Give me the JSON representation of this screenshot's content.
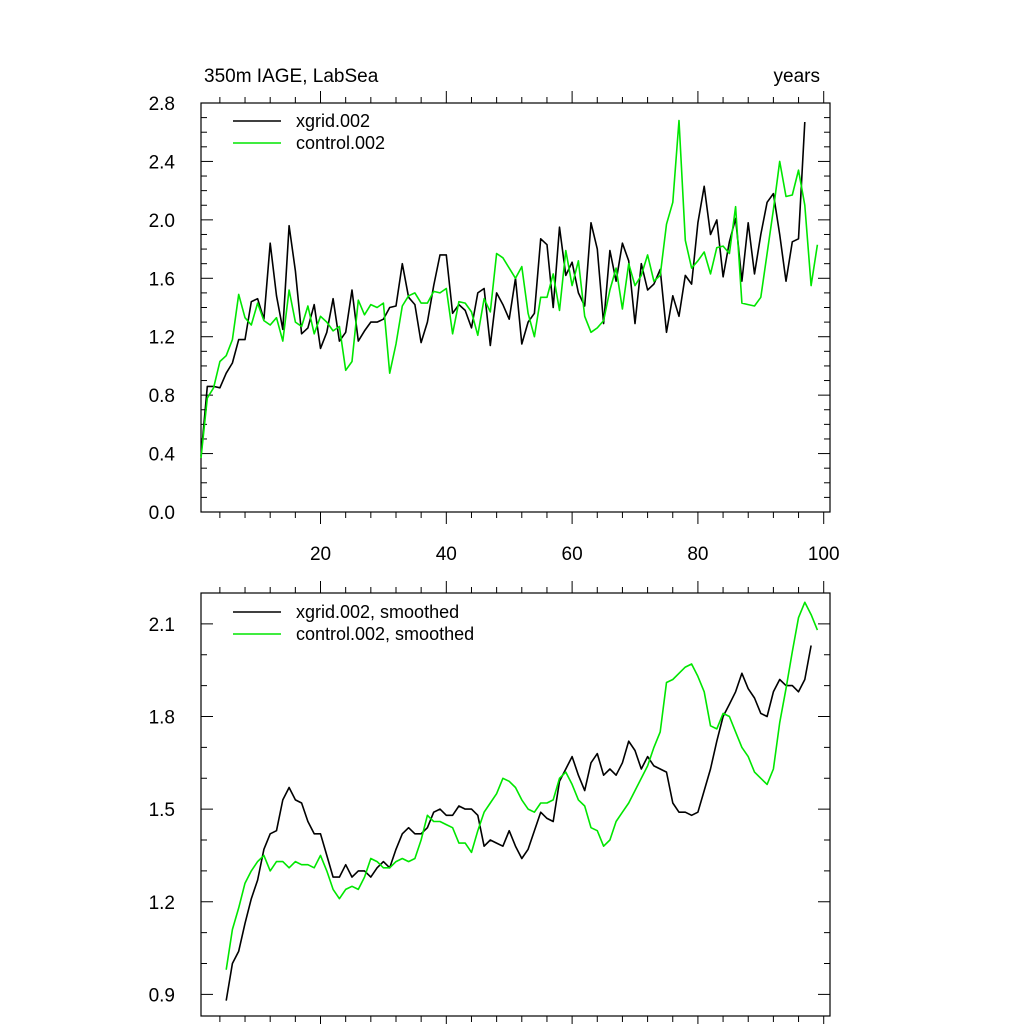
{
  "colors": {
    "xgrid": "#000000",
    "control": "#00e600",
    "axis": "#000000"
  },
  "chart_data": [
    {
      "type": "line",
      "title_left": "350m IAGE, LabSea",
      "title_right": "years",
      "xlim": [
        1,
        101
      ],
      "ylim": [
        0,
        2.8
      ],
      "xticks": [
        20,
        40,
        60,
        80,
        100
      ],
      "xtick_labels": [
        "20",
        "40",
        "60",
        "80",
        "100"
      ],
      "yticks": [
        0.0,
        0.4,
        0.8,
        1.2,
        1.6,
        2.0,
        2.4,
        2.8
      ],
      "ytick_labels": [
        "0.0",
        "0.4",
        "0.8",
        "1.2",
        "1.6",
        "2.0",
        "2.4",
        "2.8"
      ],
      "legend_position": "top-left",
      "series": [
        {
          "name": "xgrid.002",
          "color": "#000000",
          "x_start": 1,
          "values": [
            0.38,
            0.86,
            0.86,
            0.85,
            0.95,
            1.02,
            1.18,
            1.18,
            1.44,
            1.46,
            1.32,
            1.84,
            1.48,
            1.25,
            1.96,
            1.65,
            1.22,
            1.26,
            1.42,
            1.12,
            1.23,
            1.46,
            1.17,
            1.23,
            1.52,
            1.17,
            1.24,
            1.3,
            1.3,
            1.32,
            1.4,
            1.41,
            1.7,
            1.47,
            1.42,
            1.16,
            1.3,
            1.55,
            1.76,
            1.76,
            1.36,
            1.42,
            1.38,
            1.26,
            1.5,
            1.53,
            1.14,
            1.5,
            1.42,
            1.32,
            1.6,
            1.15,
            1.3,
            1.36,
            1.87,
            1.83,
            1.4,
            1.95,
            1.62,
            1.71,
            1.5,
            1.41,
            1.98,
            1.8,
            1.29,
            1.79,
            1.58,
            1.84,
            1.72,
            1.29,
            1.7,
            1.52,
            1.56,
            1.66,
            1.23,
            1.48,
            1.34,
            1.62,
            1.56,
            1.98,
            2.23,
            1.9,
            2.0,
            1.61,
            1.85,
            2.01,
            1.58,
            1.98,
            1.63,
            1.9,
            2.12,
            2.18,
            1.9,
            1.58,
            1.85,
            1.87,
            2.67
          ]
        },
        {
          "name": "control.002",
          "color": "#00e600",
          "x_start": 1,
          "values": [
            0.37,
            0.78,
            0.85,
            1.03,
            1.07,
            1.18,
            1.49,
            1.33,
            1.28,
            1.43,
            1.31,
            1.28,
            1.33,
            1.17,
            1.52,
            1.3,
            1.27,
            1.41,
            1.22,
            1.34,
            1.3,
            1.24,
            1.27,
            0.97,
            1.03,
            1.45,
            1.35,
            1.42,
            1.4,
            1.43,
            0.95,
            1.15,
            1.41,
            1.48,
            1.5,
            1.43,
            1.43,
            1.51,
            1.5,
            1.53,
            1.22,
            1.44,
            1.43,
            1.37,
            1.21,
            1.46,
            1.37,
            1.77,
            1.74,
            1.67,
            1.6,
            1.68,
            1.36,
            1.2,
            1.47,
            1.47,
            1.63,
            1.38,
            1.79,
            1.55,
            1.72,
            1.34,
            1.23,
            1.26,
            1.31,
            1.52,
            1.67,
            1.39,
            1.7,
            1.55,
            1.62,
            1.76,
            1.58,
            1.62,
            1.97,
            2.12,
            2.68,
            1.86,
            1.67,
            1.72,
            1.78,
            1.63,
            1.81,
            1.82,
            1.77,
            2.09,
            1.43,
            1.42,
            1.41,
            1.47,
            1.77,
            2.07,
            2.4,
            2.16,
            2.17,
            2.34,
            2.1,
            1.55,
            1.83
          ]
        }
      ]
    },
    {
      "type": "line",
      "xlim": [
        1,
        101
      ],
      "ylim": [
        0.83,
        2.2
      ],
      "xticks": [
        20,
        40,
        60,
        80,
        100
      ],
      "xtick_labels": [],
      "yticks": [
        0.9,
        1.2,
        1.5,
        1.8,
        2.1
      ],
      "ytick_labels": [
        "0.9",
        "1.2",
        "1.5",
        "1.8",
        "2.1"
      ],
      "legend_position": "top-left",
      "series": [
        {
          "name": "xgrid.002, smoothed",
          "color": "#000000",
          "x_start": 5,
          "values": [
            0.88,
            1.0,
            1.04,
            1.13,
            1.21,
            1.27,
            1.37,
            1.42,
            1.43,
            1.53,
            1.57,
            1.53,
            1.52,
            1.46,
            1.42,
            1.42,
            1.35,
            1.28,
            1.28,
            1.32,
            1.28,
            1.3,
            1.3,
            1.28,
            1.31,
            1.33,
            1.31,
            1.37,
            1.42,
            1.44,
            1.42,
            1.42,
            1.44,
            1.49,
            1.5,
            1.48,
            1.48,
            1.51,
            1.5,
            1.5,
            1.48,
            1.38,
            1.4,
            1.39,
            1.38,
            1.43,
            1.38,
            1.34,
            1.37,
            1.43,
            1.49,
            1.47,
            1.46,
            1.59,
            1.63,
            1.67,
            1.61,
            1.56,
            1.65,
            1.68,
            1.61,
            1.63,
            1.61,
            1.65,
            1.72,
            1.69,
            1.63,
            1.67,
            1.64,
            1.63,
            1.62,
            1.52,
            1.49,
            1.49,
            1.48,
            1.49,
            1.56,
            1.63,
            1.72,
            1.8,
            1.84,
            1.88,
            1.94,
            1.89,
            1.86,
            1.81,
            1.8,
            1.88,
            1.92,
            1.9,
            1.9,
            1.88,
            1.92,
            2.03
          ]
        },
        {
          "name": "control.002, smoothed",
          "color": "#00e600",
          "x_start": 5,
          "values": [
            0.98,
            1.11,
            1.18,
            1.26,
            1.3,
            1.33,
            1.35,
            1.3,
            1.33,
            1.33,
            1.31,
            1.33,
            1.32,
            1.32,
            1.31,
            1.35,
            1.3,
            1.24,
            1.21,
            1.24,
            1.25,
            1.24,
            1.28,
            1.34,
            1.33,
            1.31,
            1.31,
            1.33,
            1.34,
            1.33,
            1.34,
            1.4,
            1.48,
            1.46,
            1.46,
            1.45,
            1.44,
            1.39,
            1.39,
            1.36,
            1.43,
            1.49,
            1.52,
            1.55,
            1.6,
            1.59,
            1.57,
            1.53,
            1.5,
            1.49,
            1.52,
            1.52,
            1.53,
            1.6,
            1.62,
            1.58,
            1.53,
            1.51,
            1.44,
            1.43,
            1.38,
            1.4,
            1.46,
            1.49,
            1.52,
            1.56,
            1.6,
            1.64,
            1.7,
            1.75,
            1.91,
            1.92,
            1.94,
            1.96,
            1.97,
            1.93,
            1.88,
            1.77,
            1.76,
            1.81,
            1.8,
            1.75,
            1.7,
            1.67,
            1.62,
            1.6,
            1.58,
            1.63,
            1.78,
            1.89,
            2.01,
            2.12,
            2.17,
            2.13,
            2.08
          ]
        }
      ]
    }
  ]
}
